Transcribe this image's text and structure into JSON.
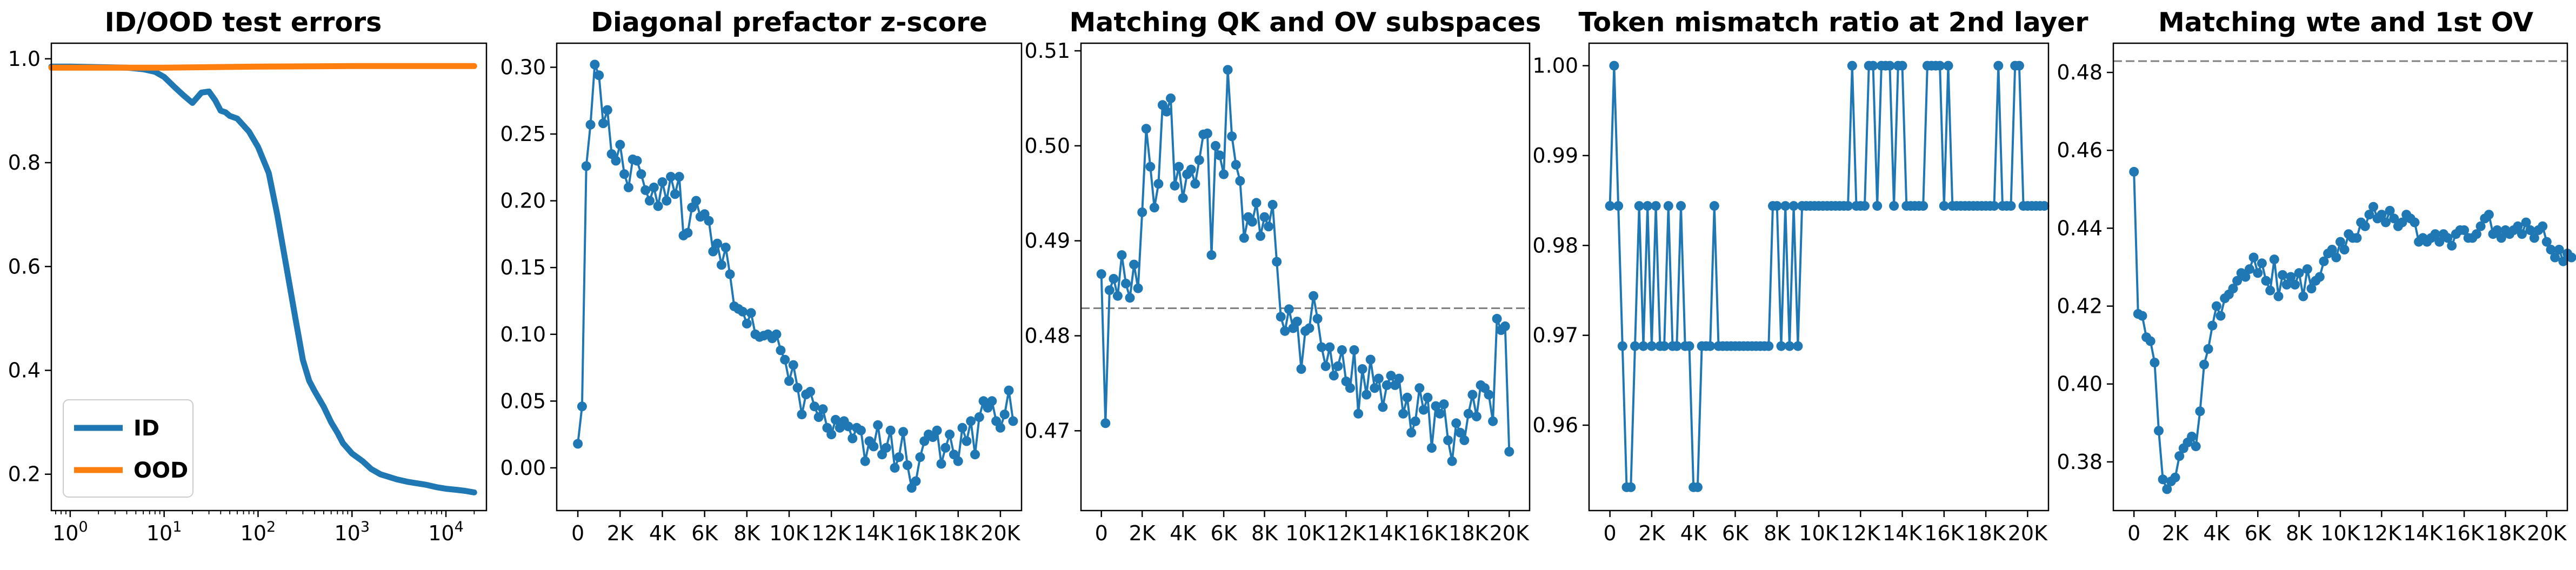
{
  "colors": {
    "blue": "#1f77b4",
    "orange": "#ff7f0e",
    "reference": "#808080"
  },
  "chart_data": [
    {
      "type": "line",
      "title": "ID/OOD test errors",
      "xlabel": "",
      "ylabel": "",
      "xscale": "log",
      "xlim": [
        0.63,
        27000
      ],
      "ylim": [
        0.13,
        1.03
      ],
      "x_ticks": [
        {
          "value": 1,
          "base": "10",
          "exp": "0"
        },
        {
          "value": 10,
          "base": "10",
          "exp": "1"
        },
        {
          "value": 100,
          "base": "10",
          "exp": "2"
        },
        {
          "value": 1000,
          "base": "10",
          "exp": "3"
        },
        {
          "value": 10000,
          "base": "10",
          "exp": "4"
        }
      ],
      "y_ticks": [
        {
          "value": 0.2,
          "label": "0.2"
        },
        {
          "value": 0.4,
          "label": "0.4"
        },
        {
          "value": 0.6,
          "label": "0.6"
        },
        {
          "value": 0.8,
          "label": "0.8"
        },
        {
          "value": 1.0,
          "label": "1.0"
        }
      ],
      "legend": {
        "location": "lower-left"
      },
      "series": [
        {
          "name": "ID",
          "color": "#1f77b4",
          "x": [
            0.63,
            1,
            2,
            4,
            6,
            8,
            10,
            13,
            16,
            20,
            25,
            30,
            35,
            40,
            45,
            50,
            60,
            80,
            100,
            130,
            160,
            200,
            250,
            300,
            350,
            400,
            500,
            600,
            700,
            800,
            1000,
            1300,
            1600,
            2000,
            3000,
            4000,
            6000,
            8000,
            10000,
            13000,
            16000,
            20000
          ],
          "y": [
            0.985,
            0.985,
            0.984,
            0.983,
            0.98,
            0.975,
            0.965,
            0.945,
            0.93,
            0.915,
            0.935,
            0.937,
            0.92,
            0.9,
            0.897,
            0.89,
            0.885,
            0.86,
            0.83,
            0.78,
            0.7,
            0.6,
            0.5,
            0.42,
            0.38,
            0.36,
            0.33,
            0.3,
            0.28,
            0.26,
            0.24,
            0.225,
            0.21,
            0.2,
            0.19,
            0.185,
            0.18,
            0.175,
            0.172,
            0.17,
            0.168,
            0.165
          ]
        },
        {
          "name": "OOD",
          "color": "#ff7f0e",
          "x": [
            0.63,
            10,
            100,
            1000,
            10000,
            20000
          ],
          "y": [
            0.983,
            0.983,
            0.985,
            0.986,
            0.986,
            0.986
          ]
        }
      ]
    },
    {
      "type": "line",
      "title": "Diagonal prefactor z-score",
      "xlabel": "",
      "ylabel": "",
      "xlim": [
        -1000,
        21000
      ],
      "ylim": [
        -0.032,
        0.318
      ],
      "x_ticks": [
        {
          "value": 0,
          "label": "0"
        },
        {
          "value": 2000,
          "label": "2K"
        },
        {
          "value": 4000,
          "label": "4K"
        },
        {
          "value": 6000,
          "label": "6K"
        },
        {
          "value": 8000,
          "label": "8K"
        },
        {
          "value": 10000,
          "label": "10K"
        },
        {
          "value": 12000,
          "label": "12K"
        },
        {
          "value": 14000,
          "label": "14K"
        },
        {
          "value": 16000,
          "label": "16K"
        },
        {
          "value": 18000,
          "label": "18K"
        },
        {
          "value": 20000,
          "label": "20K"
        }
      ],
      "y_ticks": [
        {
          "value": 0.0,
          "label": "0.00"
        },
        {
          "value": 0.05,
          "label": "0.05"
        },
        {
          "value": 0.1,
          "label": "0.10"
        },
        {
          "value": 0.15,
          "label": "0.15"
        },
        {
          "value": 0.2,
          "label": "0.20"
        },
        {
          "value": 0.25,
          "label": "0.25"
        },
        {
          "value": 0.3,
          "label": "0.30"
        }
      ],
      "series": [
        {
          "name": "",
          "color": "#1f77b4",
          "step": 200,
          "x_start": 0,
          "y": [
            0.018,
            0.046,
            0.226,
            0.257,
            0.302,
            0.294,
            0.258,
            0.268,
            0.235,
            0.23,
            0.242,
            0.22,
            0.21,
            0.231,
            0.23,
            0.22,
            0.208,
            0.2,
            0.21,
            0.196,
            0.214,
            0.2,
            0.218,
            0.205,
            0.218,
            0.174,
            0.176,
            0.195,
            0.2,
            0.188,
            0.19,
            0.185,
            0.162,
            0.168,
            0.152,
            0.165,
            0.145,
            0.121,
            0.119,
            0.117,
            0.108,
            0.116,
            0.1,
            0.098,
            0.099,
            0.1,
            0.097,
            0.1,
            0.088,
            0.081,
            0.065,
            0.077,
            0.06,
            0.04,
            0.055,
            0.057,
            0.046,
            0.038,
            0.044,
            0.03,
            0.025,
            0.036,
            0.03,
            0.035,
            0.031,
            0.022,
            0.03,
            0.028,
            0.005,
            0.02,
            0.016,
            0.032,
            0.01,
            0.015,
            0.028,
            0.0,
            0.008,
            0.027,
            0.002,
            -0.015,
            -0.01,
            0.008,
            0.02,
            0.025,
            0.023,
            0.028,
            0.003,
            0.015,
            0.025,
            0.01,
            0.005,
            0.03,
            0.02,
            0.035,
            0.01,
            0.038,
            0.05,
            0.045,
            0.05,
            0.035,
            0.03,
            0.04,
            0.058,
            0.035
          ]
        }
      ]
    },
    {
      "type": "line",
      "title": "Matching QK and OV subspaces",
      "xlabel": "",
      "ylabel": "",
      "xlim": [
        -1000,
        21000
      ],
      "ylim": [
        0.4616,
        0.5108
      ],
      "x_ticks": [
        {
          "value": 0,
          "label": "0"
        },
        {
          "value": 2000,
          "label": "2K"
        },
        {
          "value": 4000,
          "label": "4K"
        },
        {
          "value": 6000,
          "label": "6K"
        },
        {
          "value": 8000,
          "label": "8K"
        },
        {
          "value": 10000,
          "label": "10K"
        },
        {
          "value": 12000,
          "label": "12K"
        },
        {
          "value": 14000,
          "label": "14K"
        },
        {
          "value": 16000,
          "label": "16K"
        },
        {
          "value": 18000,
          "label": "18K"
        },
        {
          "value": 20000,
          "label": "20K"
        }
      ],
      "y_ticks": [
        {
          "value": 0.47,
          "label": "0.47"
        },
        {
          "value": 0.48,
          "label": "0.48"
        },
        {
          "value": 0.49,
          "label": "0.49"
        },
        {
          "value": 0.5,
          "label": "0.50"
        },
        {
          "value": 0.51,
          "label": "0.51"
        }
      ],
      "reference_line": 0.4829,
      "series": [
        {
          "name": "",
          "color": "#1f77b4",
          "step": 200,
          "x_start": 0,
          "y": [
            0.4865,
            0.4708,
            0.4848,
            0.486,
            0.4842,
            0.4885,
            0.4855,
            0.484,
            0.4875,
            0.485,
            0.493,
            0.5018,
            0.4978,
            0.4935,
            0.496,
            0.5043,
            0.5036,
            0.505,
            0.4958,
            0.4978,
            0.4945,
            0.497,
            0.4975,
            0.496,
            0.4985,
            0.5012,
            0.5013,
            0.4885,
            0.5,
            0.499,
            0.497,
            0.508,
            0.501,
            0.498,
            0.4963,
            0.4903,
            0.4925,
            0.492,
            0.494,
            0.4905,
            0.4925,
            0.4915,
            0.4938,
            0.4878,
            0.482,
            0.4805,
            0.4828,
            0.4808,
            0.4815,
            0.4765,
            0.4805,
            0.4808,
            0.4842,
            0.4818,
            0.4788,
            0.4768,
            0.4788,
            0.4758,
            0.4768,
            0.4785,
            0.4752,
            0.4745,
            0.4785,
            0.4718,
            0.4765,
            0.4738,
            0.4775,
            0.4745,
            0.4755,
            0.4725,
            0.4748,
            0.4758,
            0.4748,
            0.4755,
            0.4718,
            0.4735,
            0.4698,
            0.471,
            0.4745,
            0.4722,
            0.4735,
            0.4682,
            0.4726,
            0.4718,
            0.4728,
            0.469,
            0.4668,
            0.4708,
            0.4698,
            0.469,
            0.4718,
            0.4738,
            0.4715,
            0.4748,
            0.4745,
            0.4738,
            0.471,
            0.4818,
            0.4806,
            0.481,
            0.4678
          ]
        }
      ]
    },
    {
      "type": "line",
      "title": "Token mismatch ratio at 2nd layer",
      "xlabel": "",
      "ylabel": "",
      "xlim": [
        -1000,
        21000
      ],
      "ylim": [
        0.9505,
        1.0025
      ],
      "x_ticks": [
        {
          "value": 0,
          "label": "0"
        },
        {
          "value": 2000,
          "label": "2K"
        },
        {
          "value": 4000,
          "label": "4K"
        },
        {
          "value": 6000,
          "label": "6K"
        },
        {
          "value": 8000,
          "label": "8K"
        },
        {
          "value": 10000,
          "label": "10K"
        },
        {
          "value": 12000,
          "label": "12K"
        },
        {
          "value": 14000,
          "label": "14K"
        },
        {
          "value": 16000,
          "label": "16K"
        },
        {
          "value": 18000,
          "label": "18K"
        },
        {
          "value": 20000,
          "label": "20K"
        }
      ],
      "y_ticks": [
        {
          "value": 0.96,
          "label": "0.96"
        },
        {
          "value": 0.97,
          "label": "0.97"
        },
        {
          "value": 0.98,
          "label": "0.98"
        },
        {
          "value": 0.99,
          "label": "0.99"
        },
        {
          "value": 1.0,
          "label": "1.00"
        }
      ],
      "series": [
        {
          "name": "",
          "color": "#1f77b4",
          "step": 200,
          "x_start": 0,
          "y": [
            0.9844,
            1.0,
            0.9844,
            0.9688,
            0.9531,
            0.9531,
            0.9688,
            0.9844,
            0.9688,
            0.9844,
            0.9688,
            0.9844,
            0.9688,
            0.9688,
            0.9844,
            0.9688,
            0.9688,
            0.9844,
            0.9688,
            0.9688,
            0.9531,
            0.9531,
            0.9688,
            0.9688,
            0.9688,
            0.9844,
            0.9688,
            0.9688,
            0.9688,
            0.9688,
            0.9688,
            0.9688,
            0.9688,
            0.9688,
            0.9688,
            0.9688,
            0.9688,
            0.9688,
            0.9688,
            0.9844,
            0.9844,
            0.9688,
            0.9844,
            0.9688,
            0.9844,
            0.9688,
            0.9844,
            0.9844,
            0.9844,
            0.9844,
            0.9844,
            0.9844,
            0.9844,
            0.9844,
            0.9844,
            0.9844,
            0.9844,
            0.9844,
            1.0,
            0.9844,
            0.9844,
            0.9844,
            1.0,
            1.0,
            0.9844,
            1.0,
            1.0,
            1.0,
            0.9844,
            1.0,
            1.0,
            0.9844,
            0.9844,
            0.9844,
            0.9844,
            0.9844,
            1.0,
            1.0,
            1.0,
            1.0,
            0.9844,
            1.0,
            0.9844,
            0.9844,
            0.9844,
            0.9844,
            0.9844,
            0.9844,
            0.9844,
            0.9844,
            0.9844,
            0.9844,
            0.9844,
            1.0,
            0.9844,
            0.9844,
            0.9844,
            1.0,
            1.0,
            0.9844,
            0.9844,
            0.9844,
            0.9844,
            0.9844,
            0.9844
          ]
        }
      ]
    },
    {
      "type": "line",
      "title": "Matching wte and 1st OV",
      "xlabel": "",
      "ylabel": "",
      "xlim": [
        -1000,
        21000
      ],
      "ylim": [
        0.3675,
        0.4875
      ],
      "x_ticks": [
        {
          "value": 0,
          "label": "0"
        },
        {
          "value": 2000,
          "label": "2K"
        },
        {
          "value": 4000,
          "label": "4K"
        },
        {
          "value": 6000,
          "label": "6K"
        },
        {
          "value": 8000,
          "label": "8K"
        },
        {
          "value": 10000,
          "label": "10K"
        },
        {
          "value": 12000,
          "label": "12K"
        },
        {
          "value": 14000,
          "label": "14K"
        },
        {
          "value": 16000,
          "label": "16K"
        },
        {
          "value": 18000,
          "label": "18K"
        },
        {
          "value": 20000,
          "label": "20K"
        }
      ],
      "y_ticks": [
        {
          "value": 0.38,
          "label": "0.38"
        },
        {
          "value": 0.4,
          "label": "0.40"
        },
        {
          "value": 0.42,
          "label": "0.42"
        },
        {
          "value": 0.44,
          "label": "0.44"
        },
        {
          "value": 0.46,
          "label": "0.46"
        },
        {
          "value": 0.48,
          "label": "0.48"
        }
      ],
      "reference_line": 0.4829,
      "series": [
        {
          "name": "",
          "color": "#1f77b4",
          "step": 200,
          "x_start": 0,
          "y": [
            0.4545,
            0.418,
            0.4175,
            0.412,
            0.411,
            0.4055,
            0.388,
            0.3755,
            0.373,
            0.375,
            0.376,
            0.3815,
            0.3835,
            0.385,
            0.3865,
            0.384,
            0.393,
            0.405,
            0.409,
            0.415,
            0.42,
            0.4175,
            0.422,
            0.423,
            0.4245,
            0.4265,
            0.4285,
            0.4275,
            0.4295,
            0.4325,
            0.4285,
            0.431,
            0.4265,
            0.424,
            0.432,
            0.4225,
            0.428,
            0.4255,
            0.4275,
            0.4255,
            0.4285,
            0.4225,
            0.4295,
            0.4245,
            0.4265,
            0.4275,
            0.4315,
            0.4335,
            0.4345,
            0.4325,
            0.4365,
            0.4345,
            0.4385,
            0.4375,
            0.4375,
            0.4415,
            0.4405,
            0.4435,
            0.4455,
            0.4425,
            0.4435,
            0.4415,
            0.4445,
            0.4425,
            0.4405,
            0.4415,
            0.4435,
            0.4425,
            0.4415,
            0.4365,
            0.4375,
            0.4365,
            0.4375,
            0.4385,
            0.4365,
            0.4385,
            0.4375,
            0.4355,
            0.4385,
            0.4395,
            0.4395,
            0.4375,
            0.4375,
            0.4385,
            0.4405,
            0.4425,
            0.4435,
            0.4385,
            0.4395,
            0.4375,
            0.4395,
            0.4385,
            0.4395,
            0.4405,
            0.4385,
            0.4415,
            0.4395,
            0.4375,
            0.4395,
            0.4405,
            0.4365,
            0.4345,
            0.4325,
            0.4345,
            0.4315,
            0.4335,
            0.4325
          ]
        }
      ]
    }
  ]
}
